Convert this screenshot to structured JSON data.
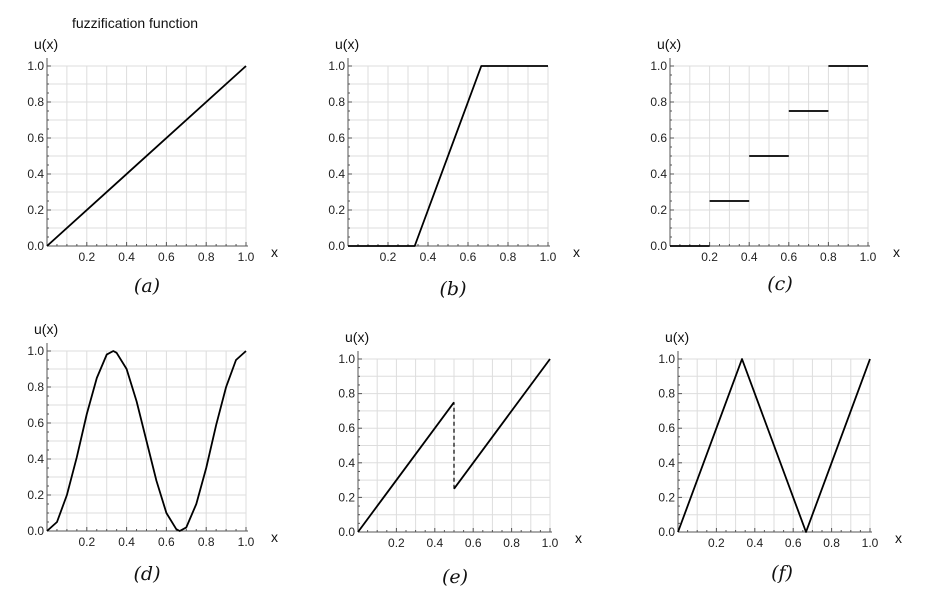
{
  "chart_data": [
    {
      "panel": "(a)",
      "type": "line",
      "title": "fuzzification function",
      "xlabel": "x",
      "ylabel": "u(x)",
      "xlim": [
        0,
        1
      ],
      "ylim": [
        0,
        1
      ],
      "xticks": [
        "0.2",
        "0.4",
        "0.6",
        "0.8",
        "1.0"
      ],
      "yticks": [
        "0.0",
        "0.2",
        "0.4",
        "0.6",
        "0.8",
        "1.0"
      ],
      "grid": "dense",
      "segments": [
        {
          "x": [
            0,
            1
          ],
          "y": [
            0,
            1
          ]
        }
      ]
    },
    {
      "panel": "(b)",
      "type": "line",
      "title": "",
      "xlabel": "x",
      "ylabel": "u(x)",
      "xlim": [
        0,
        1
      ],
      "ylim": [
        0,
        1
      ],
      "xticks": [
        "0.2",
        "0.4",
        "0.6",
        "0.8",
        "1.0"
      ],
      "yticks": [
        "0.0",
        "0.2",
        "0.4",
        "0.6",
        "0.8",
        "1.0"
      ],
      "grid": "light",
      "segments": [
        {
          "x": [
            0,
            0.3333,
            0.6667,
            1
          ],
          "y": [
            0,
            0,
            1,
            1
          ]
        }
      ]
    },
    {
      "panel": "(c)",
      "type": "line",
      "title": "",
      "xlabel": "x",
      "ylabel": "u(x)",
      "xlim": [
        0,
        1
      ],
      "ylim": [
        0,
        1
      ],
      "xticks": [
        "0.2",
        "0.4",
        "0.6",
        "0.8",
        "1.0"
      ],
      "yticks": [
        "0.0",
        "0.2",
        "0.4",
        "0.6",
        "0.8",
        "1.0"
      ],
      "grid": "light",
      "segments": [
        {
          "x": [
            0,
            0.2
          ],
          "y": [
            0,
            0
          ]
        },
        {
          "x": [
            0.2,
            0.4
          ],
          "y": [
            0.25,
            0.25
          ]
        },
        {
          "x": [
            0.4,
            0.6
          ],
          "y": [
            0.5,
            0.5
          ]
        },
        {
          "x": [
            0.6,
            0.8
          ],
          "y": [
            0.75,
            0.75
          ]
        },
        {
          "x": [
            0.8,
            1.0
          ],
          "y": [
            1,
            1
          ]
        }
      ]
    },
    {
      "panel": "(d)",
      "type": "line",
      "title": "",
      "xlabel": "x",
      "ylabel": "u(x)",
      "xlim": [
        0,
        1
      ],
      "ylim": [
        0,
        1
      ],
      "xticks": [
        "0.2",
        "0.4",
        "0.6",
        "0.8",
        "1.0"
      ],
      "yticks": [
        "0.0",
        "0.2",
        "0.4",
        "0.6",
        "0.8",
        "1.0"
      ],
      "grid": "light",
      "segments": [
        {
          "x": [
            0,
            0.05,
            0.1,
            0.15,
            0.2,
            0.25,
            0.3,
            0.3333,
            0.35,
            0.4,
            0.45,
            0.5,
            0.55,
            0.6,
            0.65,
            0.6667,
            0.7,
            0.75,
            0.8,
            0.85,
            0.9,
            0.95,
            1
          ],
          "y": [
            0,
            0.05,
            0.2,
            0.41,
            0.65,
            0.85,
            0.98,
            1,
            0.99,
            0.9,
            0.72,
            0.5,
            0.28,
            0.1,
            0.01,
            0,
            0.02,
            0.15,
            0.35,
            0.59,
            0.8,
            0.95,
            1
          ]
        }
      ]
    },
    {
      "panel": "(e)",
      "type": "line",
      "title": "",
      "xlabel": "x",
      "ylabel": "u(x)",
      "xlim": [
        0,
        1
      ],
      "ylim": [
        0,
        1
      ],
      "xticks": [
        "0.2",
        "0.4",
        "0.6",
        "0.8",
        "1.0"
      ],
      "yticks": [
        "0.0",
        "0.2",
        "0.4",
        "0.6",
        "0.8",
        "1.0"
      ],
      "grid": "light",
      "segments": [
        {
          "x": [
            0,
            0.5
          ],
          "y": [
            0,
            0.75
          ]
        },
        {
          "x": [
            0.5,
            1
          ],
          "y": [
            0.25,
            1
          ]
        }
      ],
      "dashed": [
        {
          "x": [
            0.5,
            0.5
          ],
          "y": [
            0.25,
            0.75
          ]
        }
      ]
    },
    {
      "panel": "(f)",
      "type": "line",
      "title": "",
      "xlabel": "x",
      "ylabel": "u(x)",
      "xlim": [
        0,
        1
      ],
      "ylim": [
        0,
        1
      ],
      "xticks": [
        "0.2",
        "0.4",
        "0.6",
        "0.8",
        "1.0"
      ],
      "yticks": [
        "0.0",
        "0.2",
        "0.4",
        "0.6",
        "0.8",
        "1.0"
      ],
      "grid": "light",
      "segments": [
        {
          "x": [
            0,
            0.3333,
            0.6667,
            1
          ],
          "y": [
            0,
            1,
            0,
            1
          ]
        }
      ]
    }
  ]
}
